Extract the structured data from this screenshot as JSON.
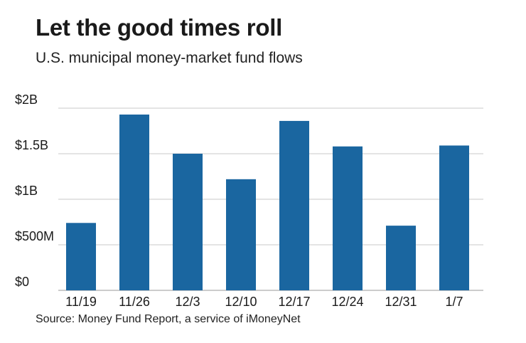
{
  "chart_data": {
    "type": "bar",
    "title": "Let the good times roll",
    "subtitle": "U.S. municipal money-market fund flows",
    "source": "Source: Money Fund Report, a service of iMoneyNet",
    "categories": [
      "11/19",
      "11/26",
      "12/3",
      "12/10",
      "12/17",
      "12/24",
      "12/31",
      "1/7"
    ],
    "values": [
      0.74,
      1.93,
      1.5,
      1.22,
      1.86,
      1.58,
      0.71,
      1.59
    ],
    "ylim": [
      0,
      2
    ],
    "yticks": [
      0,
      0.5,
      1,
      1.5,
      2
    ],
    "ytick_labels": [
      "$0",
      "$500M",
      "$1B",
      "$1.5B",
      "$2B"
    ],
    "xlabel": "",
    "ylabel": "",
    "grid": true,
    "bar_color": "#1a66a0",
    "grid_color": "#c8c8c8"
  }
}
